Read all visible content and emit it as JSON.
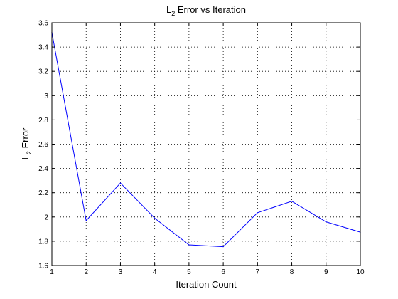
{
  "chart_data": {
    "type": "line",
    "title": {
      "main": "L",
      "sub": "2",
      "rest": " Error vs Iteration"
    },
    "xlabel": "Iteration Count",
    "ylabel": {
      "main": "L",
      "sub": "2",
      "rest": " Error"
    },
    "xlim": [
      1,
      10
    ],
    "ylim": [
      1.6,
      3.6
    ],
    "x_ticks": [
      1,
      2,
      3,
      4,
      5,
      6,
      7,
      8,
      9,
      10
    ],
    "x_tick_labels": [
      "1",
      "2",
      "3",
      "4",
      "5",
      "6",
      "7",
      "8",
      "9",
      "10"
    ],
    "y_ticks": [
      1.6,
      1.8,
      2.0,
      2.2,
      2.4,
      2.6,
      2.8,
      3.0,
      3.2,
      3.4,
      3.6
    ],
    "y_tick_labels": [
      "1.6",
      "1.8",
      "2",
      "2.2",
      "2.4",
      "2.6",
      "2.8",
      "3",
      "3.2",
      "3.4",
      "3.6"
    ],
    "grid": true,
    "grid_style": "dotted",
    "series": [
      {
        "color": "#0000ff",
        "x": [
          1,
          2,
          3,
          4,
          5,
          6,
          7,
          8,
          9,
          10
        ],
        "y": [
          3.52,
          1.97,
          2.28,
          1.99,
          1.77,
          1.755,
          2.035,
          2.13,
          1.96,
          1.875
        ]
      }
    ]
  }
}
